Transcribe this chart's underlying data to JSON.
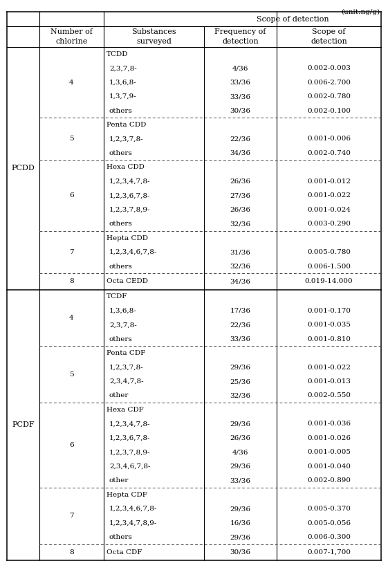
{
  "title_unit": "(unit:ng/g)",
  "rows": [
    {
      "group": "PCDD",
      "chlorine": "4",
      "substance": "TCDD",
      "frequency": "",
      "scope": "",
      "dashed_below": false
    },
    {
      "group": "",
      "chlorine": "",
      "substance": "2,3,7,8-",
      "frequency": "4/36",
      "scope": "0.002-0.003",
      "dashed_below": false
    },
    {
      "group": "",
      "chlorine": "",
      "substance": "1,3,6,8-",
      "frequency": "33/36",
      "scope": "0.006-2.700",
      "dashed_below": false
    },
    {
      "group": "",
      "chlorine": "",
      "substance": "1,3,7,9-",
      "frequency": "33/36",
      "scope": "0.002-0.780",
      "dashed_below": false
    },
    {
      "group": "",
      "chlorine": "",
      "substance": "others",
      "frequency": "30/36",
      "scope": "0.002-0.100",
      "dashed_below": true
    },
    {
      "group": "",
      "chlorine": "5",
      "substance": "Penta CDD",
      "frequency": "",
      "scope": "",
      "dashed_below": false
    },
    {
      "group": "",
      "chlorine": "",
      "substance": "1,2,3,7,8-",
      "frequency": "22/36",
      "scope": "0.001-0.006",
      "dashed_below": false
    },
    {
      "group": "",
      "chlorine": "",
      "substance": "others",
      "frequency": "34/36",
      "scope": "0.002-0.740",
      "dashed_below": true
    },
    {
      "group": "",
      "chlorine": "6",
      "substance": "Hexa CDD",
      "frequency": "",
      "scope": "",
      "dashed_below": false
    },
    {
      "group": "",
      "chlorine": "",
      "substance": "1,2,3,4,7,8-",
      "frequency": "26/36",
      "scope": "0.001-0.012",
      "dashed_below": false
    },
    {
      "group": "",
      "chlorine": "",
      "substance": "1,2,3,6,7,8-",
      "frequency": "27/36",
      "scope": "0.001-0.022",
      "dashed_below": false
    },
    {
      "group": "",
      "chlorine": "",
      "substance": "1,2,3,7,8,9-",
      "frequency": "26/36",
      "scope": "0.001-0.024",
      "dashed_below": false
    },
    {
      "group": "",
      "chlorine": "",
      "substance": "others",
      "frequency": "32/36",
      "scope": "0.003-0.290",
      "dashed_below": true
    },
    {
      "group": "",
      "chlorine": "7",
      "substance": "Hepta CDD",
      "frequency": "",
      "scope": "",
      "dashed_below": false
    },
    {
      "group": "",
      "chlorine": "",
      "substance": "1,2,3,4,6,7,8-",
      "frequency": "31/36",
      "scope": "0.005-0.780",
      "dashed_below": false
    },
    {
      "group": "",
      "chlorine": "",
      "substance": "others",
      "frequency": "32/36",
      "scope": "0.006-1.500",
      "dashed_below": true
    },
    {
      "group": "",
      "chlorine": "8",
      "substance": "Octa CEDD",
      "frequency": "34/36",
      "scope": "0.019-14.000",
      "dashed_below": false
    },
    {
      "group": "PCDF",
      "chlorine": "4",
      "substance": "TCDF",
      "frequency": "",
      "scope": "",
      "dashed_below": false
    },
    {
      "group": "",
      "chlorine": "",
      "substance": "1,3,6,8-",
      "frequency": "17/36",
      "scope": "0.001-0.170",
      "dashed_below": false
    },
    {
      "group": "",
      "chlorine": "",
      "substance": "2,3,7,8-",
      "frequency": "22/36",
      "scope": "0.001-0.035",
      "dashed_below": false
    },
    {
      "group": "",
      "chlorine": "",
      "substance": "others",
      "frequency": "33/36",
      "scope": "0.001-0.810",
      "dashed_below": true
    },
    {
      "group": "",
      "chlorine": "5",
      "substance": "Penta CDF",
      "frequency": "",
      "scope": "",
      "dashed_below": false
    },
    {
      "group": "",
      "chlorine": "",
      "substance": "1,2,3,7,8-",
      "frequency": "29/36",
      "scope": "0.001-0.022",
      "dashed_below": false
    },
    {
      "group": "",
      "chlorine": "",
      "substance": "2,3,4,7,8-",
      "frequency": "25/36",
      "scope": "0.001-0.013",
      "dashed_below": false
    },
    {
      "group": "",
      "chlorine": "",
      "substance": "other",
      "frequency": "32/36",
      "scope": "0.002-0.550",
      "dashed_below": true
    },
    {
      "group": "",
      "chlorine": "6",
      "substance": "Hexa CDF",
      "frequency": "",
      "scope": "",
      "dashed_below": false
    },
    {
      "group": "",
      "chlorine": "",
      "substance": "1,2,3,4,7,8-",
      "frequency": "29/36",
      "scope": "0.001-0.036",
      "dashed_below": false
    },
    {
      "group": "",
      "chlorine": "",
      "substance": "1,2,3,6,7,8-",
      "frequency": "26/36",
      "scope": "0.001-0.026",
      "dashed_below": false
    },
    {
      "group": "",
      "chlorine": "",
      "substance": "1,2,3,7,8,9-",
      "frequency": "4/36",
      "scope": "0.001-0.005",
      "dashed_below": false
    },
    {
      "group": "",
      "chlorine": "",
      "substance": "2,3,4,6,7,8-",
      "frequency": "29/36",
      "scope": "0.001-0.040",
      "dashed_below": false
    },
    {
      "group": "",
      "chlorine": "",
      "substance": "other",
      "frequency": "33/36",
      "scope": "0.002-0.890",
      "dashed_below": true
    },
    {
      "group": "",
      "chlorine": "7",
      "substance": "Hepta CDF",
      "frequency": "",
      "scope": "",
      "dashed_below": false
    },
    {
      "group": "",
      "chlorine": "",
      "substance": "1,2,3,4,6,7,8-",
      "frequency": "29/36",
      "scope": "0.005-0.370",
      "dashed_below": false
    },
    {
      "group": "",
      "chlorine": "",
      "substance": "1,2,3,4,7,8,9-",
      "frequency": "16/36",
      "scope": "0.005-0.056",
      "dashed_below": false
    },
    {
      "group": "",
      "chlorine": "",
      "substance": "others",
      "frequency": "29/36",
      "scope": "0.006-0.300",
      "dashed_below": true
    },
    {
      "group": "",
      "chlorine": "8",
      "substance": "Octa CDF",
      "frequency": "30/36",
      "scope": "0.007-1,700",
      "dashed_below": false
    }
  ],
  "chlorine_spans": [
    [
      0,
      4,
      "4"
    ],
    [
      5,
      7,
      "5"
    ],
    [
      8,
      12,
      "6"
    ],
    [
      13,
      15,
      "7"
    ],
    [
      16,
      16,
      "8"
    ],
    [
      17,
      20,
      "4"
    ],
    [
      21,
      24,
      "5"
    ],
    [
      25,
      30,
      "6"
    ],
    [
      31,
      34,
      "7"
    ],
    [
      35,
      35,
      "8"
    ]
  ],
  "pcdd_rows": [
    0,
    16
  ],
  "pcdf_rows": [
    17,
    35
  ],
  "bg_color": "#ffffff",
  "line_color": "#000000",
  "text_color": "#000000",
  "dashed_color": "#444444",
  "font_size": 7.5,
  "header_font_size": 8.0
}
